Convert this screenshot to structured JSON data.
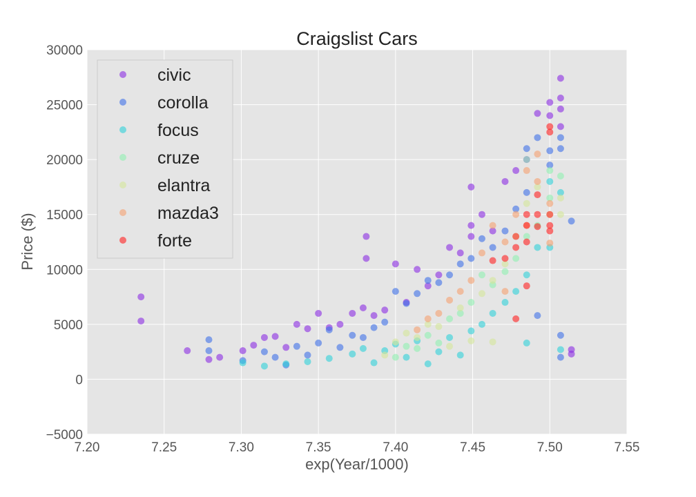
{
  "chart_data": {
    "type": "scatter",
    "title": "Craigslist Cars",
    "xlabel": "exp(Year/1000)",
    "ylabel": "Price ($)",
    "xlim": [
      7.2,
      7.55
    ],
    "ylim": [
      -5000,
      30000
    ],
    "xticks": [
      "7.20",
      "7.25",
      "7.30",
      "7.35",
      "7.40",
      "7.45",
      "7.50",
      "7.55"
    ],
    "yticks": [
      "−5000",
      "0",
      "5000",
      "10000",
      "15000",
      "20000",
      "25000",
      "30000"
    ],
    "grid": true,
    "legend_position": "top-left",
    "background": "#e5e5e5",
    "series": [
      {
        "name": "civic",
        "color": "#8a2be2",
        "points": [
          [
            7.235,
            7500
          ],
          [
            7.235,
            5300
          ],
          [
            7.265,
            2600
          ],
          [
            7.279,
            1800
          ],
          [
            7.286,
            2000
          ],
          [
            7.301,
            2600
          ],
          [
            7.308,
            3100
          ],
          [
            7.315,
            3800
          ],
          [
            7.322,
            3900
          ],
          [
            7.329,
            2900
          ],
          [
            7.336,
            5000
          ],
          [
            7.343,
            4600
          ],
          [
            7.35,
            6000
          ],
          [
            7.357,
            4700
          ],
          [
            7.364,
            5000
          ],
          [
            7.372,
            6000
          ],
          [
            7.379,
            6500
          ],
          [
            7.381,
            13000
          ],
          [
            7.381,
            11000
          ],
          [
            7.386,
            5800
          ],
          [
            7.393,
            6300
          ],
          [
            7.4,
            10500
          ],
          [
            7.407,
            7000
          ],
          [
            7.414,
            10000
          ],
          [
            7.421,
            8500
          ],
          [
            7.428,
            9500
          ],
          [
            7.435,
            12000
          ],
          [
            7.442,
            11500
          ],
          [
            7.449,
            17500
          ],
          [
            7.449,
            13000
          ],
          [
            7.449,
            14000
          ],
          [
            7.456,
            15000
          ],
          [
            7.463,
            13500
          ],
          [
            7.471,
            18000
          ],
          [
            7.478,
            19000
          ],
          [
            7.485,
            20000
          ],
          [
            7.492,
            24200
          ],
          [
            7.5,
            25200
          ],
          [
            7.5,
            24000
          ],
          [
            7.507,
            27400
          ],
          [
            7.507,
            25600
          ],
          [
            7.507,
            24600
          ],
          [
            7.507,
            23000
          ],
          [
            7.514,
            2300
          ],
          [
            7.514,
            2700
          ]
        ]
      },
      {
        "name": "corolla",
        "color": "#3d6fe8",
        "points": [
          [
            7.279,
            3600
          ],
          [
            7.279,
            2600
          ],
          [
            7.301,
            1700
          ],
          [
            7.315,
            2500
          ],
          [
            7.322,
            2000
          ],
          [
            7.329,
            1300
          ],
          [
            7.336,
            3000
          ],
          [
            7.343,
            2200
          ],
          [
            7.35,
            3300
          ],
          [
            7.357,
            4500
          ],
          [
            7.364,
            2900
          ],
          [
            7.372,
            4000
          ],
          [
            7.379,
            3800
          ],
          [
            7.386,
            4700
          ],
          [
            7.393,
            5200
          ],
          [
            7.4,
            8000
          ],
          [
            7.407,
            6900
          ],
          [
            7.414,
            7800
          ],
          [
            7.421,
            9000
          ],
          [
            7.428,
            8800
          ],
          [
            7.435,
            9500
          ],
          [
            7.442,
            10500
          ],
          [
            7.449,
            11000
          ],
          [
            7.456,
            12800
          ],
          [
            7.463,
            12000
          ],
          [
            7.471,
            13500
          ],
          [
            7.478,
            15500
          ],
          [
            7.485,
            21000
          ],
          [
            7.485,
            17000
          ],
          [
            7.492,
            22000
          ],
          [
            7.492,
            5800
          ],
          [
            7.5,
            20800
          ],
          [
            7.5,
            19500
          ],
          [
            7.507,
            22000
          ],
          [
            7.507,
            21000
          ],
          [
            7.507,
            4000
          ],
          [
            7.507,
            2000
          ],
          [
            7.514,
            14400
          ]
        ]
      },
      {
        "name": "focus",
        "color": "#2fd0d8",
        "points": [
          [
            7.301,
            1500
          ],
          [
            7.315,
            1200
          ],
          [
            7.329,
            1400
          ],
          [
            7.343,
            1600
          ],
          [
            7.357,
            1900
          ],
          [
            7.372,
            2300
          ],
          [
            7.379,
            2800
          ],
          [
            7.386,
            1500
          ],
          [
            7.393,
            2600
          ],
          [
            7.4,
            3200
          ],
          [
            7.407,
            2000
          ],
          [
            7.414,
            3500
          ],
          [
            7.421,
            1400
          ],
          [
            7.428,
            2500
          ],
          [
            7.435,
            3800
          ],
          [
            7.442,
            2200
          ],
          [
            7.449,
            4400
          ],
          [
            7.456,
            5000
          ],
          [
            7.463,
            6000
          ],
          [
            7.471,
            7000
          ],
          [
            7.478,
            8000
          ],
          [
            7.485,
            3300
          ],
          [
            7.485,
            9500
          ],
          [
            7.492,
            12000
          ],
          [
            7.5,
            12000
          ],
          [
            7.5,
            18000
          ],
          [
            7.507,
            2700
          ],
          [
            7.507,
            17000
          ]
        ]
      },
      {
        "name": "cruze",
        "color": "#90f0b0",
        "points": [
          [
            7.4,
            2000
          ],
          [
            7.407,
            3000
          ],
          [
            7.414,
            2800
          ],
          [
            7.421,
            4000
          ],
          [
            7.428,
            3300
          ],
          [
            7.435,
            5500
          ],
          [
            7.442,
            6000
          ],
          [
            7.449,
            7000
          ],
          [
            7.456,
            9500
          ],
          [
            7.463,
            8600
          ],
          [
            7.471,
            9800
          ],
          [
            7.478,
            11000
          ],
          [
            7.485,
            13000
          ],
          [
            7.485,
            20000
          ],
          [
            7.492,
            14000
          ],
          [
            7.5,
            19000
          ],
          [
            7.5,
            16500
          ],
          [
            7.507,
            18500
          ]
        ]
      },
      {
        "name": "elantra",
        "color": "#d4e69a",
        "points": [
          [
            7.393,
            2200
          ],
          [
            7.4,
            3400
          ],
          [
            7.407,
            4200
          ],
          [
            7.414,
            3800
          ],
          [
            7.421,
            5000
          ],
          [
            7.428,
            4800
          ],
          [
            7.435,
            3000
          ],
          [
            7.442,
            6500
          ],
          [
            7.449,
            3500
          ],
          [
            7.456,
            7800
          ],
          [
            7.463,
            3400
          ],
          [
            7.463,
            9000
          ],
          [
            7.471,
            10500
          ],
          [
            7.478,
            13000
          ],
          [
            7.485,
            16000
          ],
          [
            7.492,
            17500
          ],
          [
            7.5,
            15000
          ],
          [
            7.507,
            15000
          ],
          [
            7.507,
            16500
          ]
        ]
      },
      {
        "name": "mazda3",
        "color": "#f5a070",
        "points": [
          [
            7.414,
            4500
          ],
          [
            7.421,
            5500
          ],
          [
            7.428,
            6000
          ],
          [
            7.435,
            7200
          ],
          [
            7.442,
            8000
          ],
          [
            7.449,
            9000
          ],
          [
            7.456,
            11500
          ],
          [
            7.463,
            14000
          ],
          [
            7.471,
            8000
          ],
          [
            7.471,
            12500
          ],
          [
            7.478,
            15000
          ],
          [
            7.485,
            14000
          ],
          [
            7.485,
            19000
          ],
          [
            7.492,
            20500
          ],
          [
            7.492,
            18000
          ],
          [
            7.5,
            16000
          ],
          [
            7.5,
            12400
          ]
        ]
      },
      {
        "name": "forte",
        "color": "#ff2020",
        "points": [
          [
            7.463,
            10800
          ],
          [
            7.471,
            11000
          ],
          [
            7.478,
            5500
          ],
          [
            7.478,
            12000
          ],
          [
            7.478,
            13000
          ],
          [
            7.485,
            8500
          ],
          [
            7.485,
            12500
          ],
          [
            7.485,
            15000
          ],
          [
            7.485,
            14000
          ],
          [
            7.492,
            13900
          ],
          [
            7.492,
            15000
          ],
          [
            7.492,
            16800
          ],
          [
            7.5,
            23000
          ],
          [
            7.5,
            22500
          ],
          [
            7.5,
            15000
          ],
          [
            7.5,
            14000
          ],
          [
            7.5,
            13500
          ]
        ]
      }
    ]
  }
}
